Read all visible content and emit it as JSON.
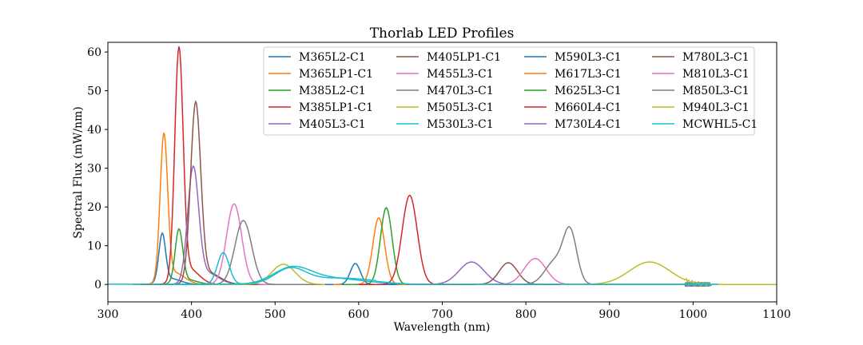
{
  "chart_data": {
    "type": "line",
    "title": "Thorlab LED Profiles",
    "xlabel": "Wavelength (nm)",
    "ylabel": "Spectral Flux (mW/nm)",
    "xlim": [
      300,
      1100
    ],
    "ylim": [
      -4.5,
      62.5
    ],
    "x_ticks": [
      300,
      400,
      500,
      600,
      700,
      800,
      900,
      1000,
      1100
    ],
    "y_ticks": [
      0,
      10,
      20,
      30,
      40,
      50,
      60
    ],
    "grid": false,
    "legend_position": "top-right",
    "legend_columns": 4,
    "series": [
      {
        "name": "M365L2-C1",
        "color": "#1f77b4",
        "peaks": [
          {
            "center": 365,
            "height": 12.2,
            "width": 4
          },
          {
            "center": 375,
            "height": 1.5,
            "width": 12
          }
        ],
        "range": [
          330,
          1000
        ]
      },
      {
        "name": "M365LP1-C1",
        "color": "#ff7f0e",
        "peaks": [
          {
            "center": 367,
            "height": 37.5,
            "width": 4.5
          },
          {
            "center": 380,
            "height": 3,
            "width": 12
          }
        ],
        "range": [
          330,
          1000
        ]
      },
      {
        "name": "M385L2-C1",
        "color": "#2ca02c",
        "peaks": [
          {
            "center": 385,
            "height": 13.5,
            "width": 4.5
          },
          {
            "center": 395,
            "height": 1.2,
            "width": 12
          }
        ],
        "range": [
          340,
          1000
        ]
      },
      {
        "name": "M385LP1-C1",
        "color": "#d62728",
        "peaks": [
          {
            "center": 385,
            "height": 59,
            "width": 5
          },
          {
            "center": 397,
            "height": 4,
            "width": 12
          }
        ],
        "range": [
          340,
          1020
        ]
      },
      {
        "name": "M405L3-C1",
        "color": "#9467bd",
        "peaks": [
          {
            "center": 402,
            "height": 29,
            "width": 6.5
          },
          {
            "center": 418,
            "height": 3,
            "width": 14
          }
        ],
        "range": [
          350,
          1020
        ]
      },
      {
        "name": "M405LP1-C1",
        "color": "#8c564b",
        "peaks": [
          {
            "center": 405,
            "height": 45.5,
            "width": 6
          },
          {
            "center": 420,
            "height": 3,
            "width": 14
          }
        ],
        "range": [
          350,
          1020
        ]
      },
      {
        "name": "M455L3-C1",
        "color": "#e377c2",
        "peaks": [
          {
            "center": 451,
            "height": 20.8,
            "width": 9
          }
        ],
        "range": [
          380,
          1020
        ]
      },
      {
        "name": "M470L3-C1",
        "color": "#7f7f7f",
        "peaks": [
          {
            "center": 462,
            "height": 16.5,
            "width": 10
          }
        ],
        "range": [
          380,
          1020
        ]
      },
      {
        "name": "M505L3-C1",
        "color": "#bcbd22",
        "peaks": [
          {
            "center": 510,
            "height": 5.2,
            "width": 14
          }
        ],
        "range": [
          420,
          1020
        ]
      },
      {
        "name": "M530L3-C1",
        "color": "#17becf",
        "peaks": [
          {
            "center": 438,
            "height": 8.2,
            "width": 7
          },
          {
            "center": 520,
            "height": 3.8,
            "width": 22
          },
          {
            "center": 565,
            "height": 1.6,
            "width": 40
          }
        ],
        "range": [
          380,
          1020
        ]
      },
      {
        "name": "M590L3-C1",
        "color": "#1f77b4",
        "peaks": [
          {
            "center": 596,
            "height": 5.4,
            "width": 6
          }
        ],
        "range": [
          560,
          1020
        ]
      },
      {
        "name": "M617L3-C1",
        "color": "#ff7f0e",
        "peaks": [
          {
            "center": 624,
            "height": 17.2,
            "width": 7
          }
        ],
        "range": [
          570,
          1020
        ]
      },
      {
        "name": "M625L3-C1",
        "color": "#2ca02c",
        "peaks": [
          {
            "center": 633,
            "height": 19.8,
            "width": 7
          }
        ],
        "range": [
          580,
          1020
        ]
      },
      {
        "name": "M660L4-C1",
        "color": "#d62728",
        "peaks": [
          {
            "center": 661,
            "height": 23,
            "width": 9
          }
        ],
        "range": [
          600,
          1020
        ]
      },
      {
        "name": "M730L4-C1",
        "color": "#9467bd",
        "peaks": [
          {
            "center": 735,
            "height": 5.8,
            "width": 15
          }
        ],
        "range": [
          660,
          1020
        ]
      },
      {
        "name": "M780L3-C1",
        "color": "#8c564b",
        "peaks": [
          {
            "center": 779,
            "height": 5.6,
            "width": 11
          }
        ],
        "range": [
          720,
          1020
        ]
      },
      {
        "name": "M810L3-C1",
        "color": "#e377c2",
        "peaks": [
          {
            "center": 811,
            "height": 6.7,
            "width": 13
          }
        ],
        "range": [
          740,
          1020
        ]
      },
      {
        "name": "M850L3-C1",
        "color": "#7f7f7f",
        "peaks": [
          {
            "center": 853,
            "height": 12.8,
            "width": 8
          },
          {
            "center": 835,
            "height": 6,
            "width": 12
          }
        ],
        "range": [
          780,
          1020
        ]
      },
      {
        "name": "M940L3-C1",
        "color": "#bcbd22",
        "peaks": [
          {
            "center": 948,
            "height": 5.8,
            "width": 24
          }
        ],
        "range": [
          840,
          1100
        ]
      },
      {
        "name": "MCWHL5-C1",
        "color": "#17becf",
        "peaks": [
          {
            "center": 440,
            "height": 0,
            "width": 1
          }
        ],
        "range": [
          300,
          1030
        ]
      }
    ]
  }
}
